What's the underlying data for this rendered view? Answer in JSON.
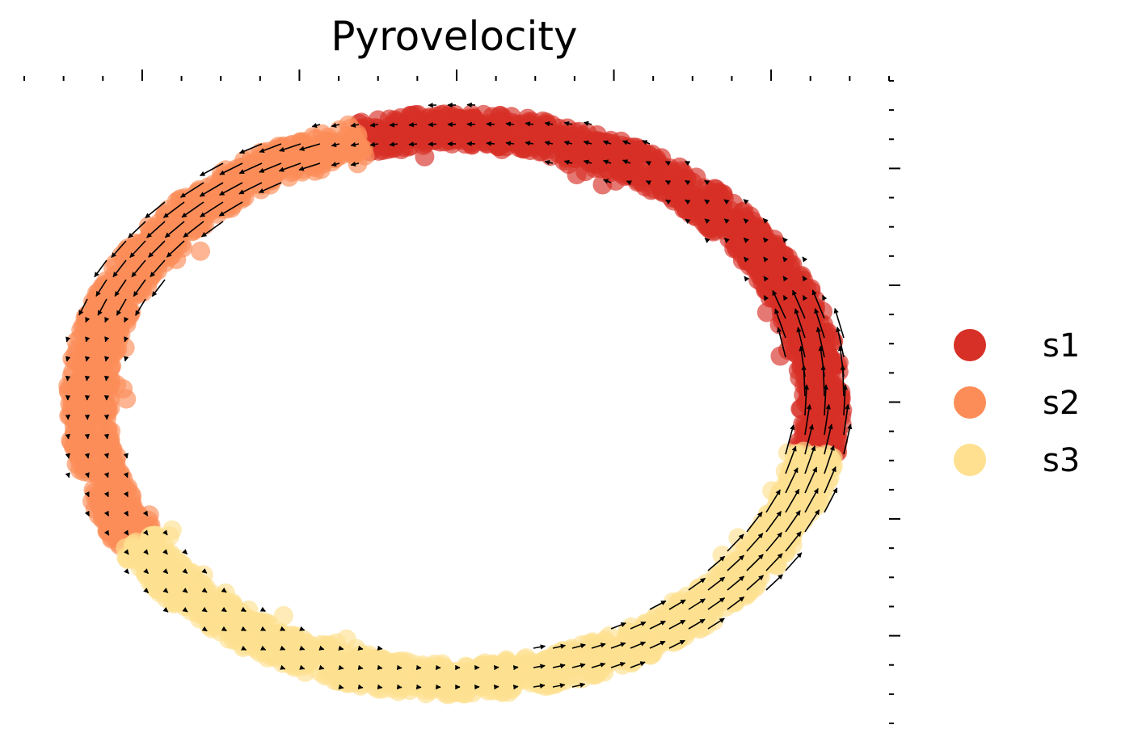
{
  "chart_data": {
    "type": "scatter",
    "subtype": "velocity-stream-embedding",
    "title": "Pyrovelocity",
    "xlabel": "",
    "ylabel": "",
    "xlim": [
      -1.1,
      1.1
    ],
    "ylim": [
      -1.1,
      1.1
    ],
    "grid": false,
    "legend_position": "right",
    "series": [
      {
        "name": "s1",
        "color": "#d73027",
        "angle_range_deg": [
          -10,
          105
        ]
      },
      {
        "name": "s2",
        "color": "#fc8d59",
        "angle_range_deg": [
          105,
          210
        ]
      },
      {
        "name": "s3",
        "color": "#fee090",
        "angle_range_deg": [
          210,
          350
        ]
      }
    ],
    "legend": [
      "s1",
      "s2",
      "s3"
    ]
  }
}
